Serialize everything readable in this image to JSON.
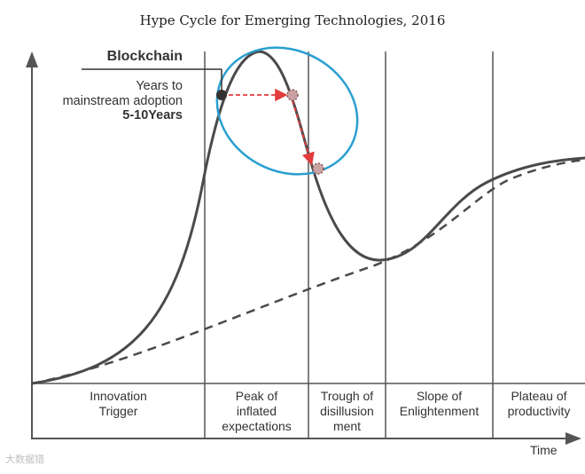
{
  "title": "Hype Cycle for Emerging Technologies, 2016",
  "phases": [
    {
      "label": "Innovation\nTrigger"
    },
    {
      "label": "Peak of\ninflated\nexpectations"
    },
    {
      "label": "Trough of\ndisillusion\nment"
    },
    {
      "label": "Slope of\nEnlightenment"
    },
    {
      "label": "Plateau of\nproductivity"
    }
  ],
  "callout": {
    "technology": "Blockchain",
    "caption": "Years to\nmainstream adoption",
    "value": "5-10Years"
  },
  "x_axis_label": "Time",
  "watermark": "大数据猎",
  "colors": {
    "hype_curve": "#4a4a4a",
    "maturity_curve": "#4a4a4a",
    "highlight_ellipse": "#2a9fd0",
    "arrow": "#e23b3b",
    "grid": "#555555"
  }
}
